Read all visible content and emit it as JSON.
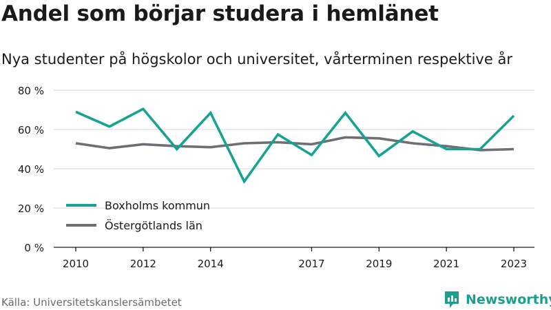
{
  "header": {
    "title": "Andel som börjar studera i hemlänet",
    "subtitle": "Nya studenter på högskolor och universitet, vårterminen respektive år"
  },
  "footer": {
    "source": "Källa: Universitetskanslersämbetet",
    "brand_name": "Newsworthy"
  },
  "colors": {
    "boxholm": "#16a394",
    "ostergotland": "#6e6e74",
    "grid": "#d6d6d6",
    "axis": "#1a1a1a",
    "brand": "#1e9e8c"
  },
  "chart_data": {
    "type": "line",
    "title": "Andel som börjar studera i hemlänet",
    "subtitle": "Nya studenter på högskolor och universitet, vårterminen respektive år",
    "x": [
      2010,
      2011,
      2012,
      2013,
      2014,
      2015,
      2016,
      2017,
      2018,
      2019,
      2020,
      2021,
      2022,
      2023
    ],
    "xticks": [
      2010,
      2012,
      2014,
      2017,
      2019,
      2021,
      2023
    ],
    "yticks": [
      0,
      20,
      40,
      60,
      80
    ],
    "ytick_labels": [
      "0 %",
      "20 %",
      "40 %",
      "60 %",
      "80 %"
    ],
    "ylim": [
      0,
      80
    ],
    "xlim": [
      2010,
      2023
    ],
    "grid": true,
    "legend_position": "bottom-left",
    "series": [
      {
        "name": "Boxholms kommun",
        "color": "#16a394",
        "values": [
          69,
          61.5,
          70.5,
          50,
          68.5,
          33.5,
          57.5,
          47,
          68.5,
          46.5,
          59,
          50,
          50,
          67
        ]
      },
      {
        "name": "Östergötlands län",
        "color": "#6e6e74",
        "values": [
          53,
          50.5,
          52.5,
          51.5,
          51,
          53,
          53.5,
          52.5,
          56,
          55.5,
          53,
          51.5,
          49.5,
          50
        ]
      }
    ]
  }
}
